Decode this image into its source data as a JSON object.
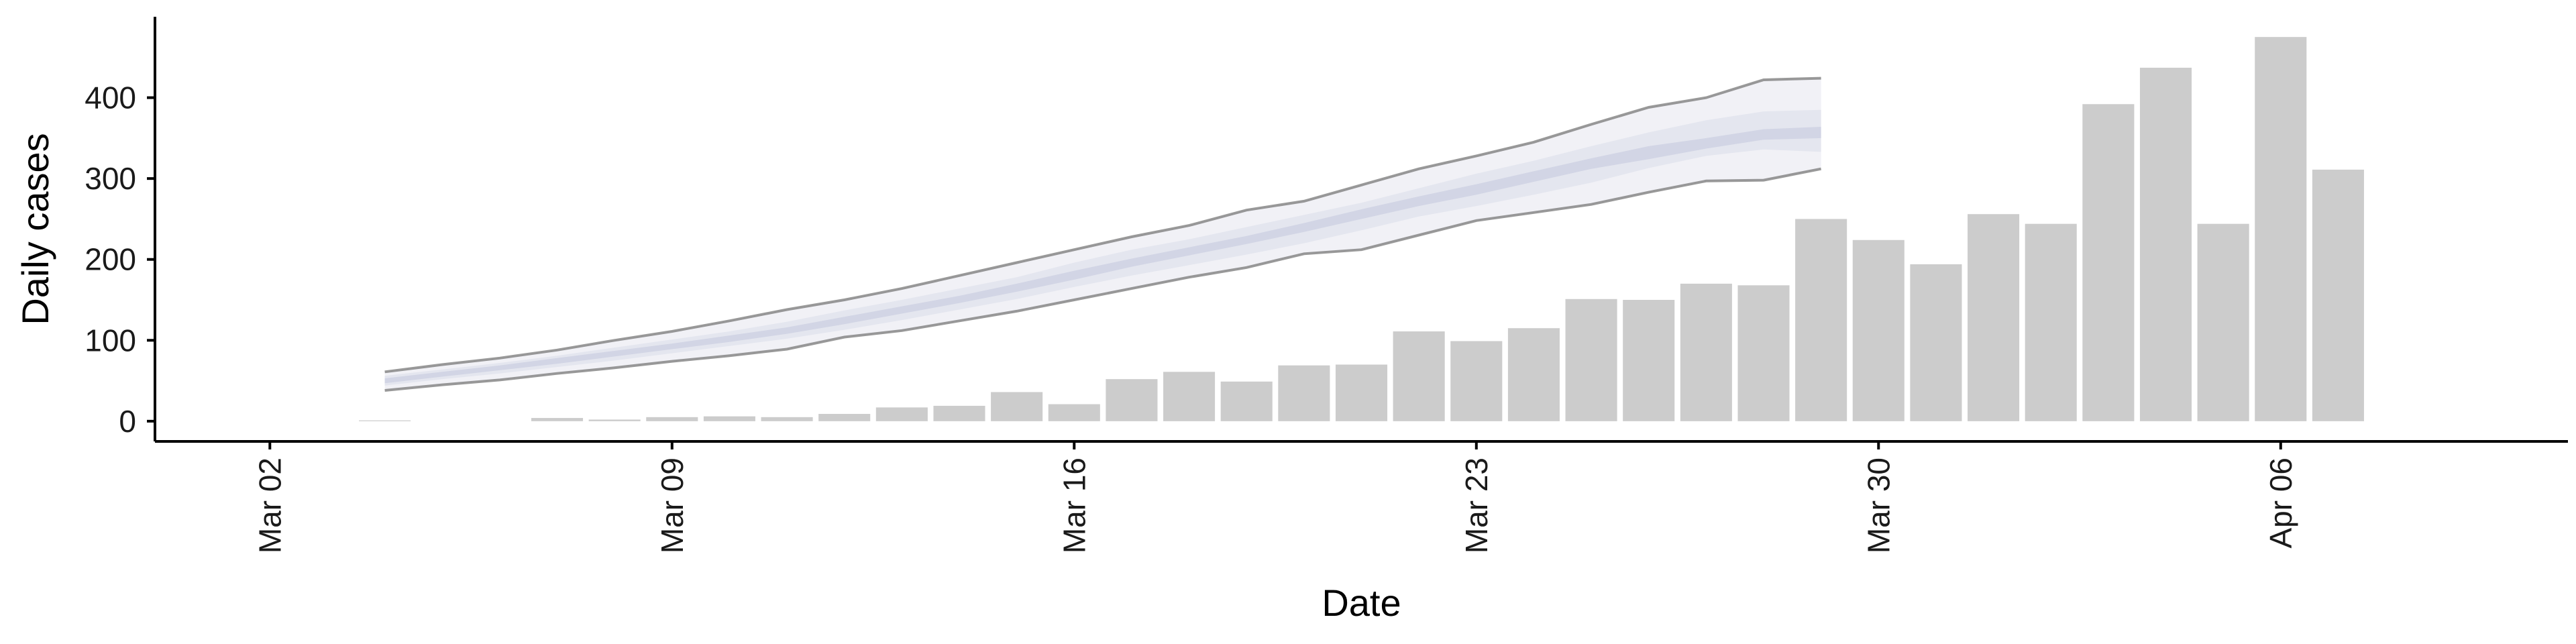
{
  "chart_data": {
    "type": "bar",
    "xlabel": "Date",
    "ylabel": "Daily cases",
    "xlim": [
      "2020-02-29",
      "2020-04-11"
    ],
    "ylim": [
      -25,
      500
    ],
    "x_ticks": [
      {
        "date": "2020-03-02",
        "label": "Mar 02"
      },
      {
        "date": "2020-03-09",
        "label": "Mar 09"
      },
      {
        "date": "2020-03-16",
        "label": "Mar 16"
      },
      {
        "date": "2020-03-23",
        "label": "Mar 23"
      },
      {
        "date": "2020-03-30",
        "label": "Mar 30"
      },
      {
        "date": "2020-04-06",
        "label": "Apr 06"
      }
    ],
    "y_ticks": [
      0,
      100,
      200,
      300,
      400
    ],
    "grid": false,
    "colors": {
      "bars": "#cccccc",
      "band_outer": "#eeeef4",
      "band_middle": "#e2e4ee",
      "band_inner": "#cfd3e3",
      "band_edge": "#7f7f7f",
      "axis": "#000000"
    },
    "bars": {
      "dates": [
        "2020-03-04",
        "2020-03-07",
        "2020-03-08",
        "2020-03-09",
        "2020-03-10",
        "2020-03-11",
        "2020-03-12",
        "2020-03-13",
        "2020-03-14",
        "2020-03-15",
        "2020-03-16",
        "2020-03-17",
        "2020-03-18",
        "2020-03-19",
        "2020-03-20",
        "2020-03-21",
        "2020-03-22",
        "2020-03-23",
        "2020-03-24",
        "2020-03-25",
        "2020-03-26",
        "2020-03-27",
        "2020-03-28",
        "2020-03-29",
        "2020-03-30",
        "2020-03-31",
        "2020-04-01",
        "2020-04-02",
        "2020-04-03",
        "2020-04-04",
        "2020-04-05",
        "2020-04-06",
        "2020-04-07"
      ],
      "values": [
        1,
        4,
        2,
        5,
        6,
        5,
        9,
        17,
        19,
        36,
        21,
        52,
        61,
        49,
        69,
        70,
        111,
        99,
        115,
        151,
        150,
        170,
        168,
        250,
        224,
        194,
        256,
        244,
        392,
        437,
        244,
        475,
        311
      ]
    },
    "estimate": {
      "dates": [
        "2020-03-04",
        "2020-03-05",
        "2020-03-06",
        "2020-03-07",
        "2020-03-08",
        "2020-03-09",
        "2020-03-10",
        "2020-03-11",
        "2020-03-12",
        "2020-03-13",
        "2020-03-14",
        "2020-03-15",
        "2020-03-16",
        "2020-03-17",
        "2020-03-18",
        "2020-03-19",
        "2020-03-20",
        "2020-03-21",
        "2020-03-22",
        "2020-03-23",
        "2020-03-24",
        "2020-03-25",
        "2020-03-26",
        "2020-03-27",
        "2020-03-28",
        "2020-03-29"
      ],
      "lower": [
        38,
        45,
        51,
        59,
        66,
        74,
        81,
        89,
        104,
        112,
        124,
        136,
        150,
        164,
        178,
        190,
        207,
        212,
        230,
        248,
        258,
        268,
        283,
        297,
        298,
        312
      ],
      "upper": [
        61,
        70,
        78,
        88,
        100,
        111,
        124,
        138,
        150,
        164,
        180,
        196,
        212,
        228,
        242,
        261,
        272,
        292,
        312,
        328,
        345,
        367,
        388,
        400,
        422,
        424
      ],
      "middle_lower": [
        44,
        52,
        59,
        67,
        75,
        84,
        93,
        102,
        113,
        125,
        138,
        151,
        166,
        180,
        193,
        206,
        220,
        236,
        253,
        266,
        280,
        295,
        313,
        328,
        336,
        333
      ],
      "middle_upper": [
        56,
        64,
        72,
        81,
        91,
        101,
        111,
        123,
        137,
        150,
        164,
        178,
        196,
        212,
        225,
        240,
        255,
        270,
        288,
        306,
        322,
        340,
        357,
        372,
        383,
        385
      ],
      "inner_lower": [
        47,
        55,
        63,
        71,
        80,
        89,
        98,
        108,
        120,
        133,
        146,
        160,
        175,
        191,
        205,
        219,
        234,
        250,
        266,
        280,
        296,
        312,
        324,
        337,
        348,
        350
      ],
      "inner_upper": [
        53,
        61,
        69,
        78,
        87,
        96,
        106,
        116,
        129,
        142,
        155,
        170,
        186,
        201,
        215,
        229,
        245,
        262,
        278,
        293,
        309,
        325,
        340,
        350,
        361,
        364
      ]
    }
  }
}
